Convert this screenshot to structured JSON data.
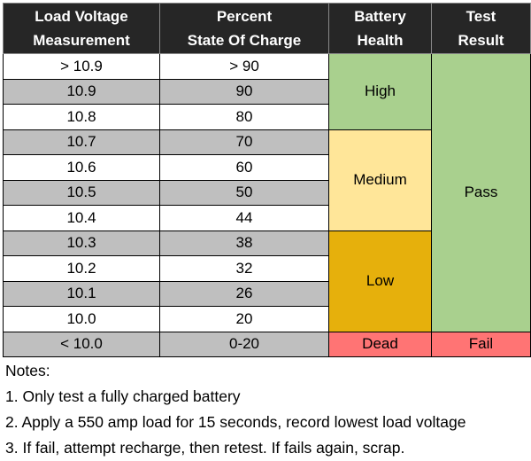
{
  "headers": {
    "voltage": [
      "Load Voltage",
      "Measurement"
    ],
    "percent": [
      "Percent",
      "State Of Charge"
    ],
    "health": [
      "Battery",
      "Health"
    ],
    "result": [
      "Test",
      "Result"
    ]
  },
  "rows": [
    {
      "voltage": "> 10.9",
      "percent": "> 90"
    },
    {
      "voltage": "10.9",
      "percent": "90"
    },
    {
      "voltage": "10.8",
      "percent": "80"
    },
    {
      "voltage": "10.7",
      "percent": "70"
    },
    {
      "voltage": "10.6",
      "percent": "60"
    },
    {
      "voltage": "10.5",
      "percent": "50"
    },
    {
      "voltage": "10.4",
      "percent": "44"
    },
    {
      "voltage": "10.3",
      "percent": "38"
    },
    {
      "voltage": "10.2",
      "percent": "32"
    },
    {
      "voltage": "10.1",
      "percent": "26"
    },
    {
      "voltage": "10.0",
      "percent": "20"
    },
    {
      "voltage": "< 10.0",
      "percent": "0-20"
    }
  ],
  "health": {
    "high": "High",
    "medium": "Medium",
    "low": "Low",
    "dead": "Dead"
  },
  "result": {
    "pass": "Pass",
    "fail": "Fail"
  },
  "colors": {
    "high": "#a9d08e",
    "medium": "#ffe699",
    "low": "#e6b00c",
    "dead": "#ff7474",
    "header": "#262626",
    "stripe": "#bfbfbf"
  },
  "notes": {
    "title": "Notes:",
    "items": [
      "1. Only test a fully charged battery",
      "2. Apply a 550 amp load for 15 seconds, record lowest load voltage",
      "3. If fail, attempt recharge, then retest. If fails again, scrap."
    ]
  }
}
